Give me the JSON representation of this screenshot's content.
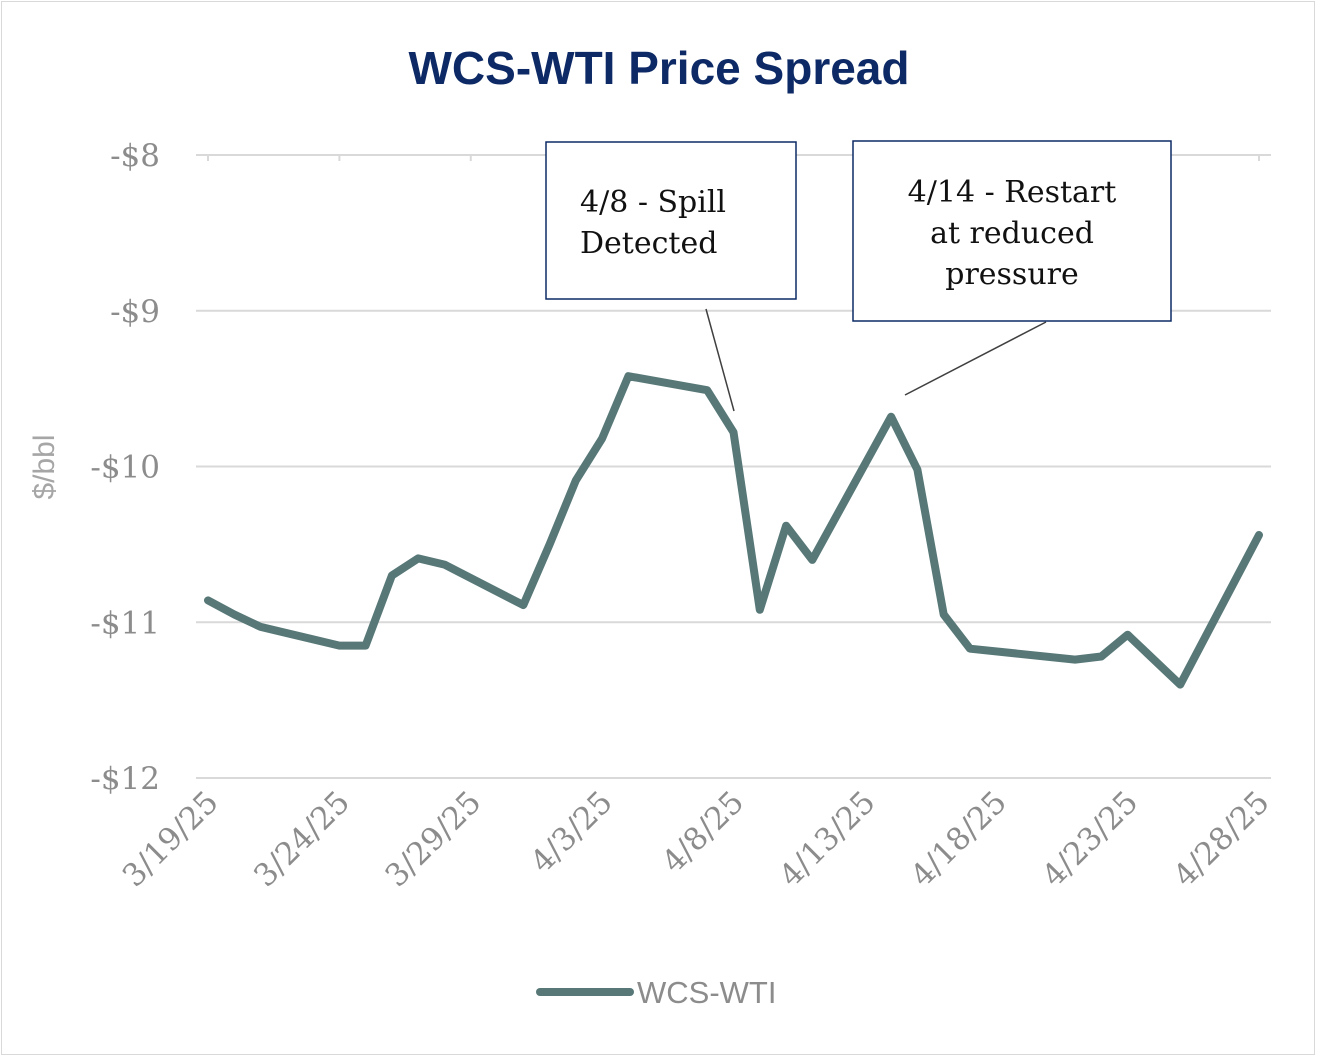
{
  "chart_data": {
    "type": "line",
    "title": "WCS-WTI Price Spread",
    "ylabel": "$/bbl",
    "xlabel": "",
    "ylim": [
      -12,
      -8
    ],
    "yticks": [
      -8,
      -9,
      -10,
      -11,
      -12
    ],
    "ytick_labels": [
      "-$8",
      "-$9",
      "-$10",
      "-$11",
      "-$12"
    ],
    "xtick_labels": [
      "3/19/25",
      "3/24/25",
      "3/29/25",
      "4/3/25",
      "4/8/25",
      "4/13/25",
      "4/18/25",
      "4/23/25",
      "4/28/25"
    ],
    "grid": true,
    "legend": "bottom",
    "series": [
      {
        "name": "WCS-WTI",
        "color": "#587878",
        "points": [
          [
            "3/19/25",
            -10.86
          ],
          [
            "3/20/25",
            -10.95
          ],
          [
            "3/21/25",
            -11.03
          ],
          [
            "3/24/25",
            -11.15
          ],
          [
            "3/25/25",
            -11.15
          ],
          [
            "3/26/25",
            -10.7
          ],
          [
            "3/27/25",
            -10.59
          ],
          [
            "3/28/25",
            -10.63
          ],
          [
            "3/31/25",
            -10.89
          ],
          [
            "4/1/25",
            -10.5
          ],
          [
            "4/2/25",
            -10.09
          ],
          [
            "4/3/25",
            -9.82
          ],
          [
            "4/4/25",
            -9.42
          ],
          [
            "4/7/25",
            -9.51
          ],
          [
            "4/8/25",
            -9.78
          ],
          [
            "4/9/25",
            -10.92
          ],
          [
            "4/10/25",
            -10.38
          ],
          [
            "4/11/25",
            -10.6
          ],
          [
            "4/14/25",
            -9.68
          ],
          [
            "4/15/25",
            -10.02
          ],
          [
            "4/16/25",
            -10.95
          ],
          [
            "4/17/25",
            -11.17
          ],
          [
            "4/21/25",
            -11.24
          ],
          [
            "4/22/25",
            -11.22
          ],
          [
            "4/23/25",
            -11.08
          ],
          [
            "4/25/25",
            -11.4
          ],
          [
            "4/28/25",
            -10.44
          ]
        ]
      }
    ],
    "annotations": [
      {
        "lines": [
          "4/8 - Spill",
          "Detected"
        ]
      },
      {
        "lines": [
          "4/14 - Restart",
          "at reduced",
          "pressure"
        ]
      }
    ]
  },
  "colors": {
    "title": "#0d2a66",
    "line": "#587878",
    "grid": "#d9d9d9",
    "tick": "#8c8c8c",
    "annotation_border": "#0d2a66"
  }
}
